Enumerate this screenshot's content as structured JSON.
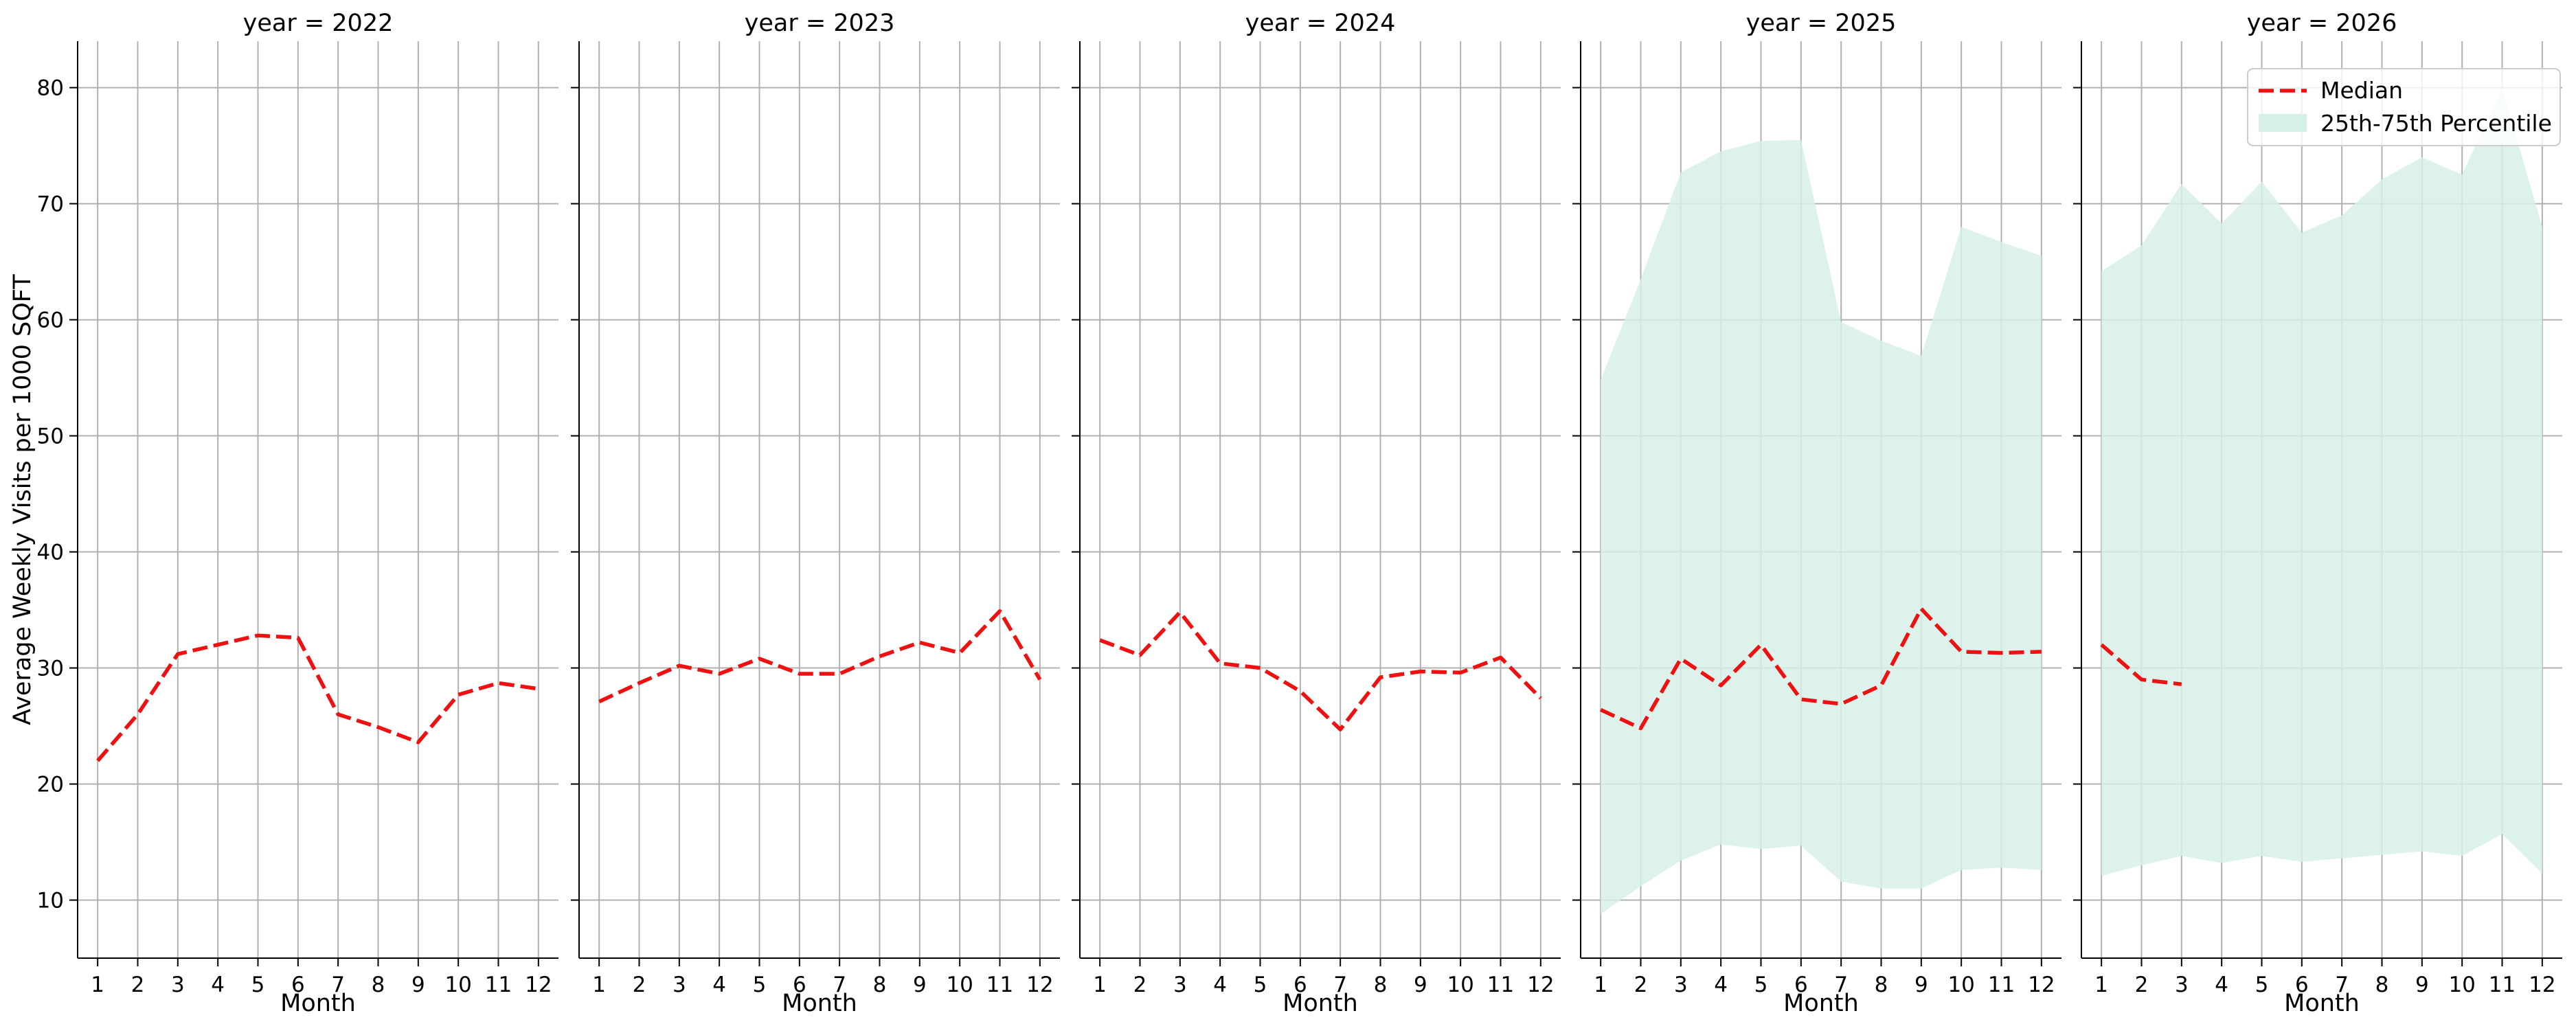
{
  "chart_data": {
    "type": "line",
    "ylabel": "Average Weekly Visits per 1000 SQFT",
    "xlabel": "Month",
    "ylim": [
      5,
      84
    ],
    "xlim": [
      0.5,
      12.5
    ],
    "yticks": [
      10,
      20,
      30,
      40,
      50,
      60,
      70,
      80
    ],
    "xticks": [
      1,
      2,
      3,
      4,
      5,
      6,
      7,
      8,
      9,
      10,
      11,
      12
    ],
    "grid": true,
    "legend": {
      "placement": "top-right",
      "entries": [
        {
          "label": "Median",
          "color": "#ee1111",
          "style": "dashed-line"
        },
        {
          "label": "25th-75th Percentile",
          "color": "#c9ebe0",
          "style": "band"
        }
      ]
    },
    "colors": {
      "median": "#ee1111",
      "band": "#d6f0e7",
      "grid": "#b0b0b0"
    },
    "panels": [
      {
        "title": "year = 2022",
        "median": {
          "months": [
            1,
            2,
            3,
            4,
            5,
            6,
            7,
            8,
            9,
            10,
            11,
            12
          ],
          "values": [
            22.0,
            26.0,
            31.2,
            32.0,
            32.8,
            32.6,
            26.0,
            24.9,
            23.6,
            27.7,
            28.7,
            28.2
          ]
        },
        "band": null
      },
      {
        "title": "year = 2023",
        "median": {
          "months": [
            1,
            2,
            3,
            4,
            5,
            6,
            7,
            8,
            9,
            10,
            11,
            12
          ],
          "values": [
            27.1,
            28.7,
            30.2,
            29.5,
            30.8,
            29.5,
            29.5,
            31.0,
            32.2,
            31.3,
            34.9,
            29.0
          ]
        },
        "band": null
      },
      {
        "title": "year = 2024",
        "median": {
          "months": [
            1,
            2,
            3,
            4,
            5,
            6,
            7,
            8,
            9,
            10,
            11,
            12
          ],
          "values": [
            32.4,
            31.1,
            34.8,
            30.4,
            30.0,
            28.0,
            24.7,
            29.2,
            29.7,
            29.6,
            30.9,
            27.4
          ]
        },
        "band": null
      },
      {
        "title": "year = 2025",
        "median": {
          "months": [
            1,
            2,
            3,
            4,
            5,
            6,
            7,
            8,
            9,
            10,
            11,
            12
          ],
          "values": [
            26.4,
            24.8,
            30.8,
            28.5,
            32.0,
            27.3,
            26.9,
            28.5,
            35.1,
            31.4,
            31.3,
            31.4
          ]
        },
        "band": {
          "months": [
            1,
            2,
            3,
            4,
            5,
            6,
            7,
            8,
            9,
            10,
            11,
            12
          ],
          "p25": [
            8.8,
            11.2,
            13.4,
            14.8,
            14.4,
            14.7,
            11.6,
            11.0,
            11.0,
            12.6,
            12.8,
            12.6
          ],
          "p75": [
            54.8,
            63.5,
            72.7,
            74.5,
            75.4,
            75.5,
            59.8,
            58.2,
            56.9,
            68.0,
            66.7,
            65.5
          ]
        }
      },
      {
        "title": "year = 2026",
        "median": {
          "months": [
            1,
            2,
            3
          ],
          "values": [
            32.0,
            29.0,
            28.6
          ]
        },
        "band": {
          "months": [
            1,
            2,
            3,
            4,
            5,
            6,
            7,
            8,
            9,
            10,
            11,
            12
          ],
          "p25": [
            12.1,
            13.0,
            13.8,
            13.2,
            13.8,
            13.3,
            13.6,
            13.9,
            14.2,
            13.8,
            15.7,
            12.3
          ],
          "p75": [
            64.2,
            66.4,
            71.7,
            68.3,
            71.9,
            67.5,
            69.0,
            72.1,
            74.0,
            72.5,
            80.0,
            68.0
          ]
        }
      }
    ]
  }
}
